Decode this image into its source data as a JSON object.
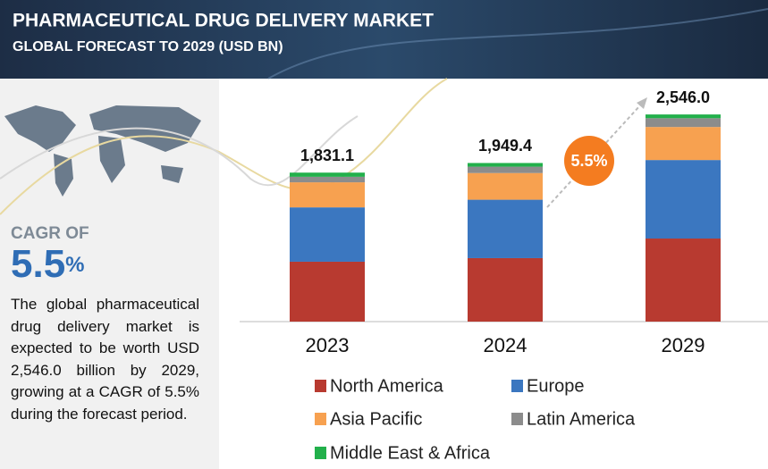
{
  "header": {
    "title": "PHARMACEUTICAL DRUG DELIVERY MARKET",
    "subtitle": "GLOBAL FORECAST TO 2029 (USD BN)"
  },
  "sidebar": {
    "cagr_label": "CAGR OF",
    "cagr_value": "5.5",
    "cagr_unit": "%",
    "description": "The global pharmaceutical drug delivery market is expected to be worth USD 2,546.0 billion by 2029, growing at a CAGR of 5.5% during the forecast period."
  },
  "chart_data": {
    "type": "stacked_bar",
    "categories": [
      "2023",
      "2024",
      "2029"
    ],
    "series": [
      {
        "name": "North America",
        "color": "#b83a30",
        "values": [
          736,
          780,
          1021
        ]
      },
      {
        "name": "Europe",
        "color": "#3b77c0",
        "values": [
          668,
          718,
          965
        ]
      },
      {
        "name": "Asia Pacific",
        "color": "#f7a150",
        "values": [
          308,
          328,
          406
        ]
      },
      {
        "name": "Latin America",
        "color": "#8c8c8c",
        "values": [
          68,
          78,
          108
        ]
      },
      {
        "name": "Middle East & Africa",
        "color": "#22b04b",
        "values": [
          51.1,
          45.4,
          46
        ]
      }
    ],
    "totals": [
      1831.1,
      1949.4,
      2546.0
    ],
    "total_labels": [
      "1,831.1",
      "1,949.4",
      "2,546.0"
    ],
    "ylim": [
      0,
      2800
    ],
    "annotation": "5.5%"
  }
}
